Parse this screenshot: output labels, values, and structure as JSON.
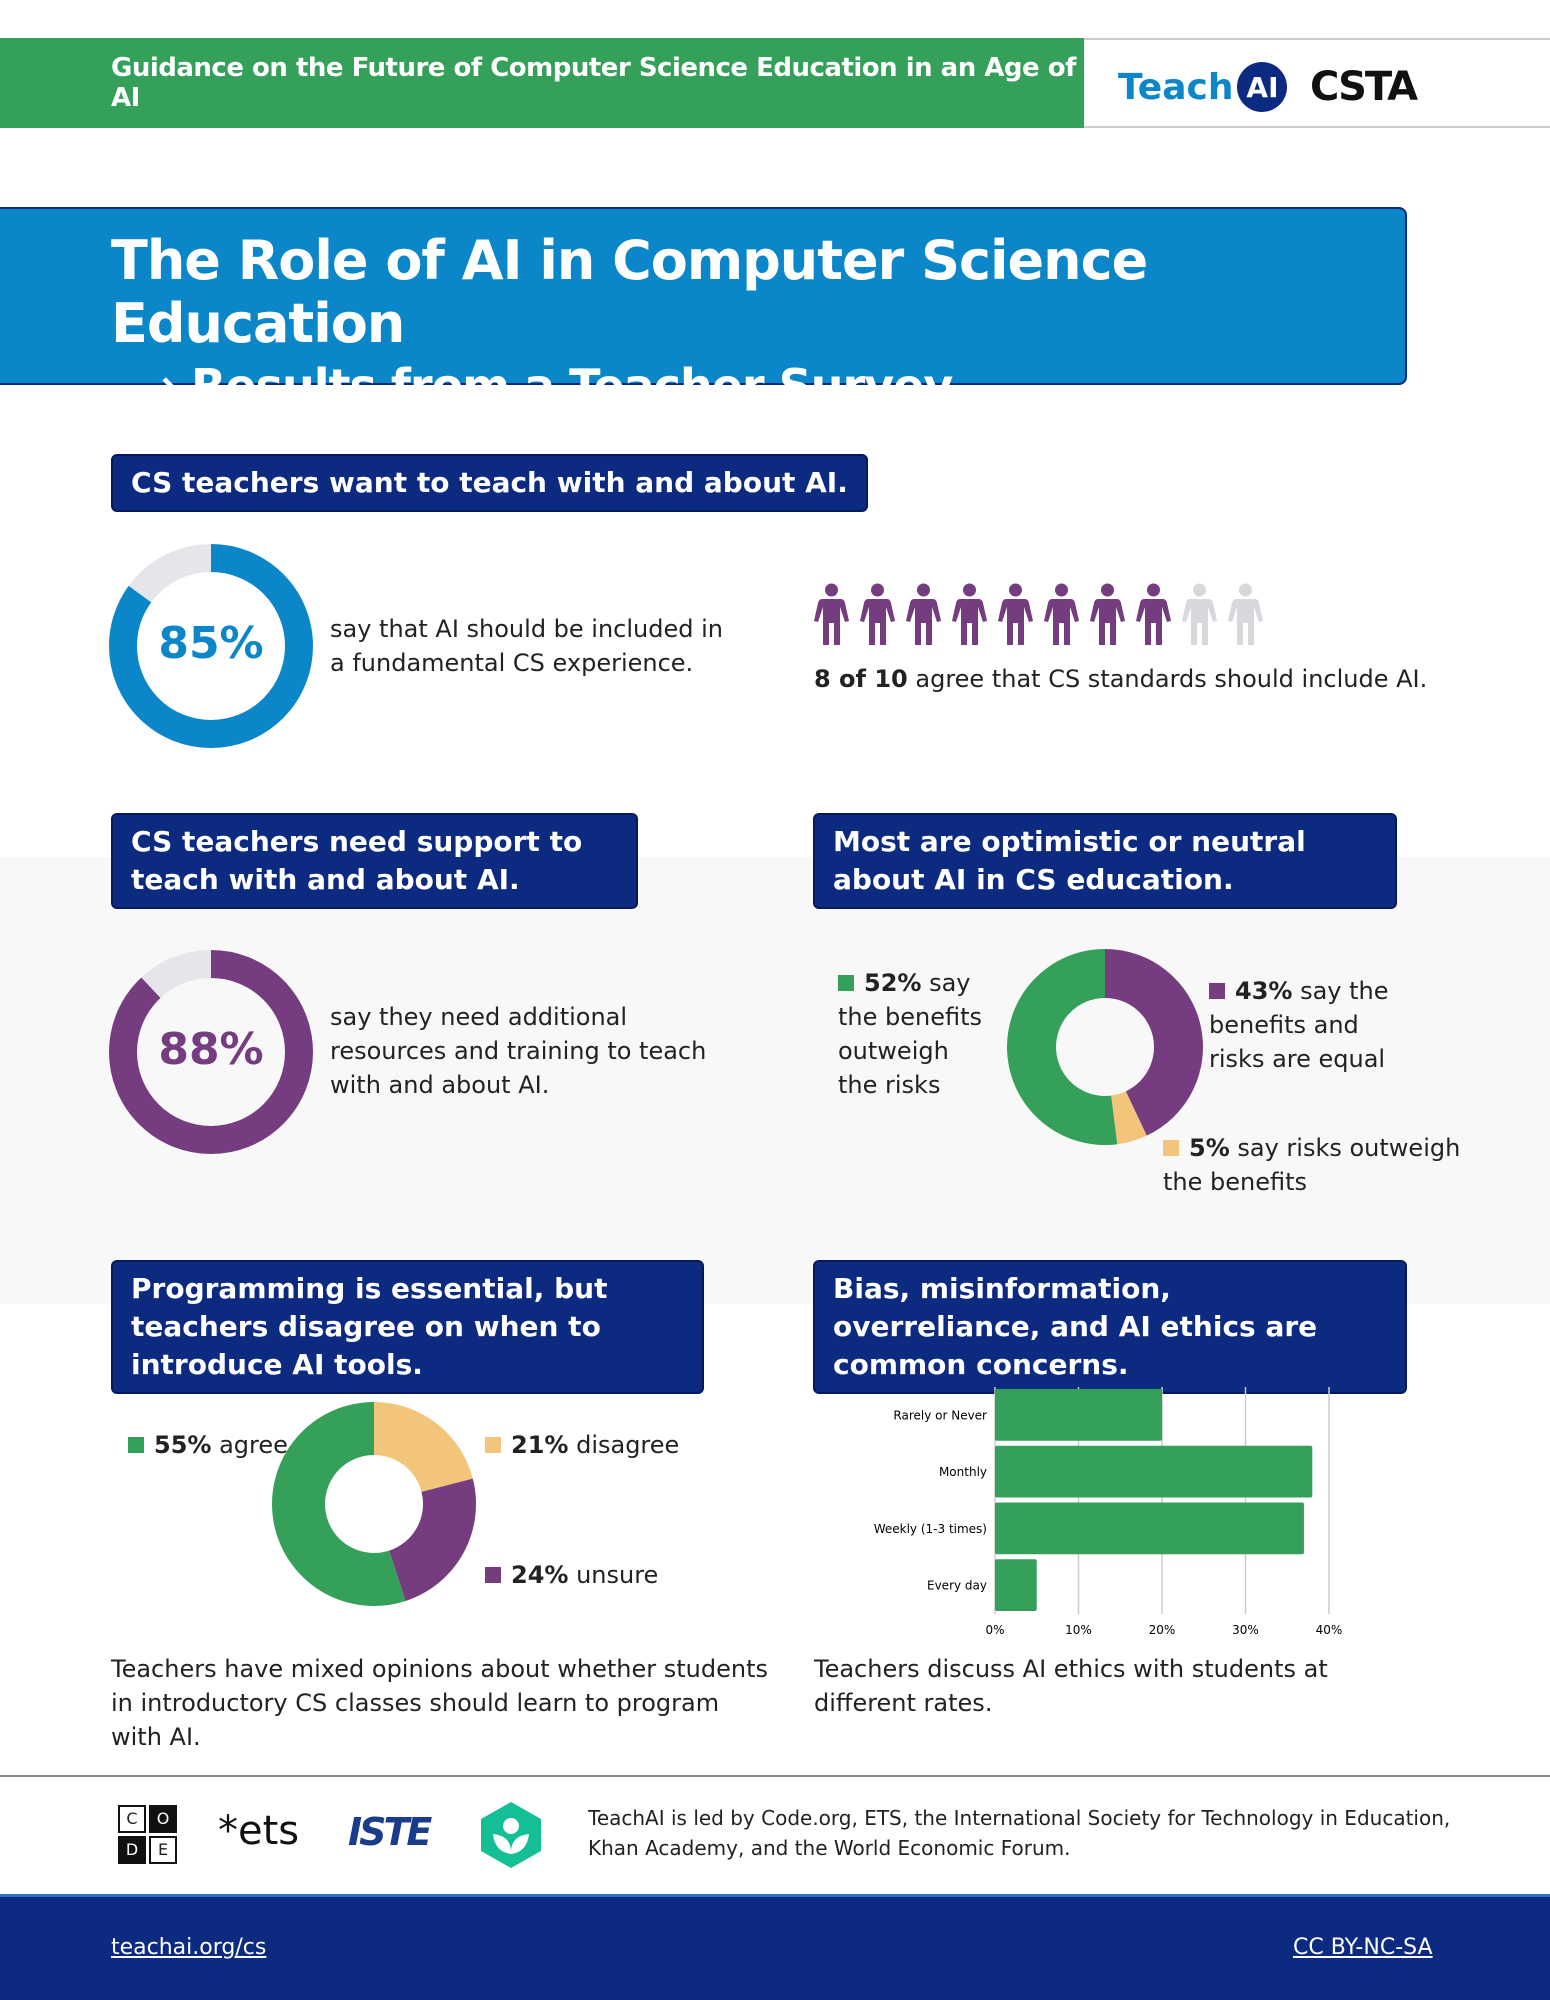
{
  "header": {
    "title": "Guidance on the Future of Computer Science Education in an Age of AI",
    "logo_teach": "Teach",
    "logo_ai": "AI",
    "logo_csta": "CSTA"
  },
  "hero": {
    "title": "The Role of AI in Computer Science Education",
    "subtitle": "Results from a Teacher Survey",
    "arrow": "⟶"
  },
  "section1": {
    "label": "CS teachers want to teach with and about AI.",
    "stat_pct": "85%",
    "stat_value": 85,
    "stat_text": "say that AI should be included in a fundamental CS experience.",
    "people_agree": 8,
    "people_total": 10,
    "people_bold": "8 of 10",
    "people_text": " agree that CS standards should include AI."
  },
  "section2": {
    "label": "CS teachers need support to teach with and about AI.",
    "stat_pct": "88%",
    "stat_value": 88,
    "stat_text": "say they need additional resources and training to teach with and about AI."
  },
  "section3": {
    "label": "Most are optimistic or neutral about AI in CS education.",
    "chart_data": {
      "type": "pie",
      "donut": true,
      "values": [
        43,
        5,
        52
      ],
      "colors": [
        "#753c80",
        "#f2c57b",
        "#34a05a"
      ]
    },
    "legend": [
      {
        "bold": "52%",
        "text": " say the benefits outweigh the risks"
      },
      {
        "bold": "43%",
        "text": " say the benefits and risks are equal"
      },
      {
        "bold": "5%",
        "text": " say risks outweigh the benefits"
      }
    ]
  },
  "section4": {
    "label": "Programming is essential, but teachers disagree on when to introduce AI tools.",
    "chart_data": {
      "type": "pie",
      "donut": true,
      "values": [
        21,
        24,
        55
      ],
      "colors": [
        "#f2c57b",
        "#753c80",
        "#34a05a"
      ]
    },
    "legend": [
      {
        "bold": "55%",
        "text": " agree"
      },
      {
        "bold": "21%",
        "text": " disagree"
      },
      {
        "bold": "24%",
        "text": " unsure"
      }
    ],
    "caption": "Teachers have mixed opinions about whether students in introductory CS classes should learn to program with AI."
  },
  "section5": {
    "label": "Bias, misinformation, overreliance, and AI ethics are common concerns.",
    "chart_data": {
      "type": "bar",
      "orientation": "horizontal",
      "categories": [
        "Rarely or Never",
        "Monthly",
        "Weekly (1-3 times)",
        "Every day"
      ],
      "values": [
        20,
        38,
        37,
        5
      ],
      "xlim": [
        0,
        40
      ],
      "xticks": [
        "0%",
        "10%",
        "20%",
        "30%",
        "40%"
      ],
      "grid": true,
      "color": "#34a05a"
    },
    "caption": "Teachers discuss AI ethics with students at different rates."
  },
  "footer": {
    "logos": [
      "C",
      "O",
      "D",
      "E"
    ],
    "ets": "*ets",
    "iste": "ISTE",
    "text": "TeachAI is led by Code.org, ETS, the International Society for Technology in Education, Khan Academy, and the World Economic Forum.",
    "link": "teachai.org/cs",
    "license": "CC BY-NC-SA"
  },
  "colors": {
    "green": "#34a05a",
    "blue": "#0a86c9",
    "navy": "#0c2a80",
    "purple": "#753c80",
    "yellow": "#f2c57b"
  }
}
